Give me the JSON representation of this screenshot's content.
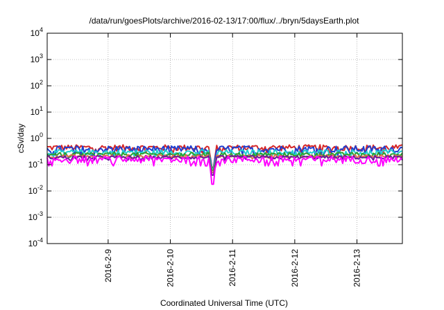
{
  "chart_data": {
    "type": "line",
    "title": "/data/run/goesPlots/archive/2016-02-13/17:00/flux/../bryn/5daysEarth.plot",
    "xlabel": "Coordinated Universal Time (UTC)",
    "ylabel": "cSv/day",
    "y_scale": "log",
    "ylim": [
      0.0001,
      10000
    ],
    "xlim": [
      -0.98,
      4.73
    ],
    "y_ticks": [
      {
        "value": 0.0001,
        "base": "10",
        "exp": "-4"
      },
      {
        "value": 0.001,
        "base": "10",
        "exp": "-3"
      },
      {
        "value": 0.01,
        "base": "10",
        "exp": "-2"
      },
      {
        "value": 0.1,
        "base": "10",
        "exp": "-1"
      },
      {
        "value": 1,
        "base": "10",
        "exp": "0"
      },
      {
        "value": 10,
        "base": "10",
        "exp": "1"
      },
      {
        "value": 100,
        "base": "10",
        "exp": "2"
      },
      {
        "value": 1000,
        "base": "10",
        "exp": "3"
      },
      {
        "value": 10000,
        "base": "10",
        "exp": "4"
      }
    ],
    "x_ticks": [
      {
        "value": 0,
        "label": "2016-2-9"
      },
      {
        "value": 1,
        "label": "2016-2-10"
      },
      {
        "value": 2,
        "label": "2016-2-11"
      },
      {
        "value": 3,
        "label": "2016-2-12"
      },
      {
        "value": 4,
        "label": "2016-2-13"
      }
    ],
    "grid": true,
    "series": [
      {
        "color": "#d62728",
        "base": 0.45,
        "amp": 0.12,
        "dip_to": 0.08
      },
      {
        "color": "#1f3fd0",
        "base": 0.4,
        "amp": 0.12,
        "dip_to": 0.07
      },
      {
        "color": "#22cfd0",
        "base": 0.3,
        "amp": 0.07,
        "dip_to": 0.07
      },
      {
        "color": "#2ca02c",
        "base": 0.25,
        "amp": 0.04,
        "dip_to": 0.06
      },
      {
        "color": "#e07050",
        "base": 0.21,
        "amp": 0.03,
        "dip_to": 0.05
      },
      {
        "color": "#6a1b9a",
        "base": 0.19,
        "amp": 0.03,
        "dip_to": 0.04
      },
      {
        "color": "#ff00ff",
        "base": 0.16,
        "amp": 0.05,
        "dip_to": 0.018
      }
    ],
    "dip_x": 1.68
  }
}
